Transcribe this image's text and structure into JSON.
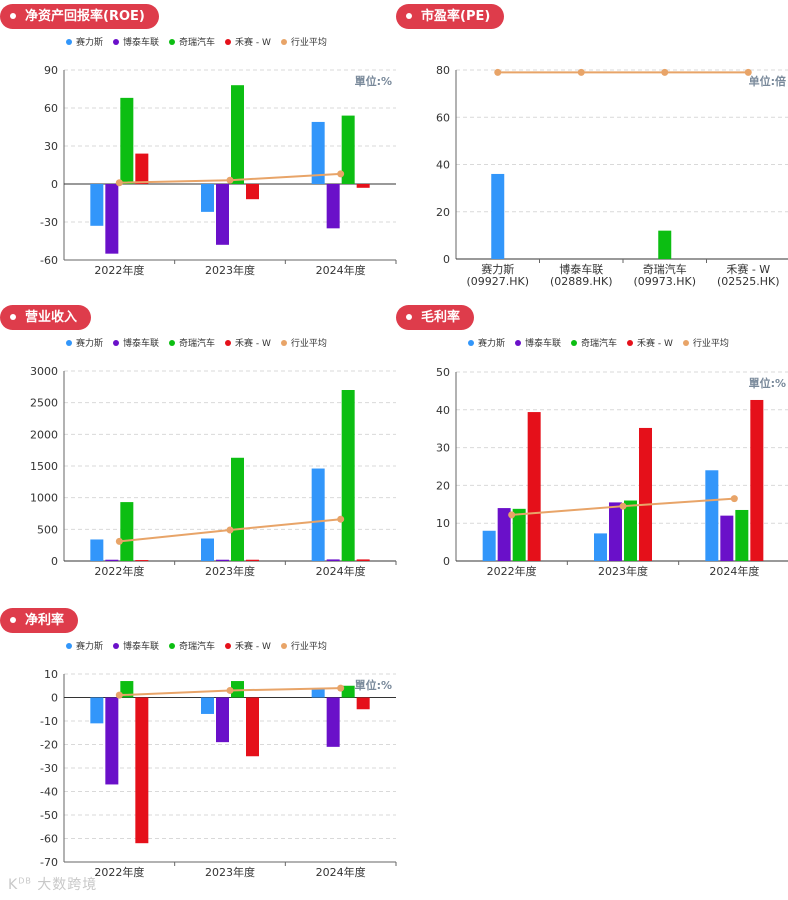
{
  "colors": {
    "pill": "#de3c4b",
    "series": [
      "#3296fa",
      "#6a10c9",
      "#0cbe12",
      "#e5101a",
      "#e8a468"
    ]
  },
  "legend_labels": [
    "赛力斯",
    "博泰车联",
    "奇瑞汽车",
    "禾赛 - W",
    "行业平均"
  ],
  "watermark": "大数跨境",
  "chart_data": [
    {
      "id": "roe",
      "type": "bar",
      "title": "净资产回报率(ROE)",
      "unit_label": "單位:%",
      "categories": [
        "2022年度",
        "2023年度",
        "2024年度"
      ],
      "ylim": [
        -60,
        90
      ],
      "yticks": [
        -60,
        -30,
        0,
        30,
        60,
        90
      ],
      "series": [
        {
          "name": "赛力斯",
          "values": [
            -33,
            -22,
            49
          ]
        },
        {
          "name": "博泰车联",
          "values": [
            -55,
            -48,
            -35
          ]
        },
        {
          "name": "奇瑞汽车",
          "values": [
            68,
            78,
            54
          ]
        },
        {
          "name": "禾赛 - W",
          "values": [
            24,
            -12,
            -3
          ]
        }
      ],
      "line": {
        "name": "行业平均",
        "values": [
          1,
          3,
          8
        ]
      }
    },
    {
      "id": "pe",
      "type": "bar",
      "title": "市盈率(PE)",
      "unit_label": "单位:倍",
      "categories": [
        "赛力斯\n(09927.HK)",
        "博泰车联\n(02889.HK)",
        "奇瑞汽车\n(09973.HK)",
        "禾赛 - W\n(02525.HK)"
      ],
      "ylim": [
        0,
        80
      ],
      "yticks": [
        0,
        20,
        40,
        60,
        80
      ],
      "bars": [
        {
          "name": "赛力斯",
          "value": 36
        },
        {
          "name": "博泰车联",
          "value": 0
        },
        {
          "name": "奇瑞汽车",
          "value": 12
        },
        {
          "name": "禾赛 - W",
          "value": 0
        }
      ],
      "line": {
        "name": "行业平均",
        "values": [
          79,
          79,
          79,
          79
        ]
      }
    },
    {
      "id": "revenue",
      "type": "bar",
      "title": "营业收入",
      "unit_label": "",
      "categories": [
        "2022年度",
        "2023年度",
        "2024年度"
      ],
      "ylim": [
        0,
        3000
      ],
      "yticks": [
        0,
        500,
        1000,
        1500,
        2000,
        2500,
        3000
      ],
      "series": [
        {
          "name": "赛力斯",
          "values": [
            340,
            355,
            1460
          ]
        },
        {
          "name": "博泰车联",
          "values": [
            20,
            20,
            25
          ]
        },
        {
          "name": "奇瑞汽车",
          "values": [
            930,
            1630,
            2700
          ]
        },
        {
          "name": "禾赛 - W",
          "values": [
            15,
            20,
            25
          ]
        }
      ],
      "line": {
        "name": "行业平均",
        "values": [
          310,
          490,
          660
        ]
      }
    },
    {
      "id": "gross_margin",
      "type": "bar",
      "title": "毛利率",
      "unit_label": "單位:%",
      "categories": [
        "2022年度",
        "2023年度",
        "2024年度"
      ],
      "ylim": [
        0,
        50
      ],
      "yticks": [
        0,
        10,
        20,
        30,
        40,
        50
      ],
      "series": [
        {
          "name": "赛力斯",
          "values": [
            8,
            7.3,
            24
          ]
        },
        {
          "name": "博泰车联",
          "values": [
            14,
            15.5,
            12
          ]
        },
        {
          "name": "奇瑞汽车",
          "values": [
            13.8,
            16,
            13.5
          ]
        },
        {
          "name": "禾赛 - W",
          "values": [
            39.4,
            35.2,
            42.6
          ]
        }
      ],
      "line": {
        "name": "行业平均",
        "values": [
          12.2,
          14.5,
          16.5
        ]
      }
    },
    {
      "id": "net_margin",
      "type": "bar",
      "title": "净利率",
      "unit_label": "單位:%",
      "categories": [
        "2022年度",
        "2023年度",
        "2024年度"
      ],
      "ylim": [
        -70,
        10
      ],
      "yticks": [
        -70,
        -60,
        -50,
        -40,
        -30,
        -20,
        -10,
        0,
        10
      ],
      "series": [
        {
          "name": "赛力斯",
          "values": [
            -11,
            -7,
            4
          ]
        },
        {
          "name": "博泰车联",
          "values": [
            -37,
            -19,
            -21
          ]
        },
        {
          "name": "奇瑞汽车",
          "values": [
            7,
            7,
            5
          ]
        },
        {
          "name": "禾赛 - W",
          "values": [
            -62,
            -25,
            -5
          ]
        }
      ],
      "line": {
        "name": "行业平均",
        "values": [
          1,
          3,
          4
        ]
      }
    }
  ]
}
